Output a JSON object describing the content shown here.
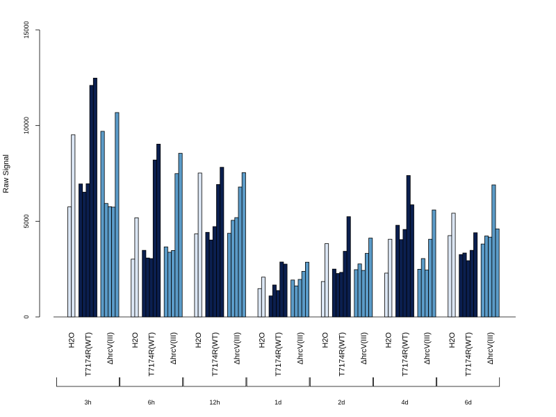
{
  "chart_data": {
    "type": "bar",
    "ylabel": "Raw Signal",
    "ylim": [
      0,
      15000
    ],
    "yticks": [
      "0",
      "5000",
      "10000",
      "15000"
    ],
    "grid": false,
    "legend": "none",
    "group_labels": [
      "H2O",
      "T7174R(WT)",
      "ΔhrcV(III)"
    ],
    "group_colors": [
      "#dbe6f4",
      "#0b1f4f",
      "#5b9bc8"
    ],
    "timepoints": [
      {
        "label": "3h",
        "groups": [
          [
            5750,
            9520
          ],
          [
            6950,
            6520,
            6960,
            12100,
            12480
          ],
          [
            9700,
            5930,
            5760,
            5740,
            10680
          ]
        ]
      },
      {
        "label": "6h",
        "groups": [
          [
            3020,
            5180
          ],
          [
            3480,
            3080,
            3050,
            8200,
            9030
          ],
          [
            3660,
            3380,
            3470,
            7490,
            8550
          ]
        ]
      },
      {
        "label": "12h",
        "groups": [
          [
            4340,
            7520
          ],
          [
            4420,
            4020,
            4720,
            6920,
            7820
          ],
          [
            4370,
            5050,
            5190,
            6790,
            7540
          ]
        ]
      },
      {
        "label": "1d",
        "groups": [
          [
            1480,
            2080
          ],
          [
            1100,
            1670,
            1380,
            2870,
            2760
          ],
          [
            1930,
            1620,
            1960,
            2380,
            2860
          ]
        ]
      },
      {
        "label": "2d",
        "groups": [
          [
            1850,
            3830
          ],
          [
            2500,
            2270,
            2330,
            3430,
            5240
          ],
          [
            2470,
            2770,
            2430,
            3320,
            4120
          ]
        ]
      },
      {
        "label": "4d",
        "groups": [
          [
            2290,
            4060
          ],
          [
            4790,
            4040,
            4570,
            7390,
            5860
          ],
          [
            2490,
            3050,
            2450,
            4060,
            5590
          ]
        ]
      },
      {
        "label": "6d",
        "groups": [
          [
            4250,
            5420
          ],
          [
            3260,
            3340,
            2940,
            3480,
            4400
          ],
          [
            3810,
            4230,
            4170,
            6900,
            4600
          ]
        ]
      }
    ]
  }
}
